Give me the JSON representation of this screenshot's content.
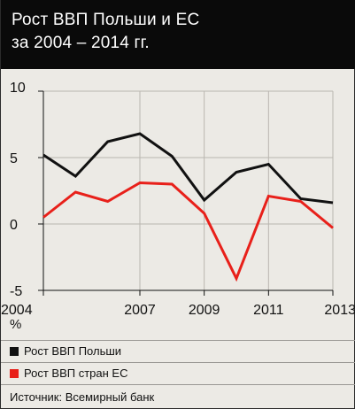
{
  "header": {
    "title": "Рост ВВП Польши и ЕС\nза 2004 – 2014 гг."
  },
  "chart_data": {
    "type": "line",
    "x": [
      2004,
      2005,
      2006,
      2007,
      2008,
      2009,
      2010,
      2011,
      2012,
      2013
    ],
    "xticks": [
      "2004",
      "2007",
      "2009",
      "2011",
      "2013"
    ],
    "yticks": [
      "10",
      "5",
      "0",
      "-5"
    ],
    "ylim": [
      -5,
      10
    ],
    "xlim": [
      2004,
      2013
    ],
    "ylabel": "%",
    "series": [
      {
        "name": "Рост ВВП Польши",
        "color": "#111111",
        "values": [
          5.2,
          3.6,
          6.2,
          6.8,
          5.1,
          1.8,
          3.9,
          4.5,
          1.9,
          1.6
        ]
      },
      {
        "name": "Рост ВВП стран ЕС",
        "color": "#e8201a",
        "values": [
          0.5,
          2.4,
          1.7,
          3.1,
          3.0,
          0.8,
          -4.1,
          2.1,
          1.7,
          -0.3
        ]
      }
    ],
    "grid": true
  },
  "legend": {
    "items": [
      {
        "label": "Рост ВВП Польши",
        "color": "#111111"
      },
      {
        "label": "Рост ВВП стран ЕС",
        "color": "#e8201a"
      }
    ]
  },
  "footer": {
    "source": "Источник: Всемирный банк"
  }
}
